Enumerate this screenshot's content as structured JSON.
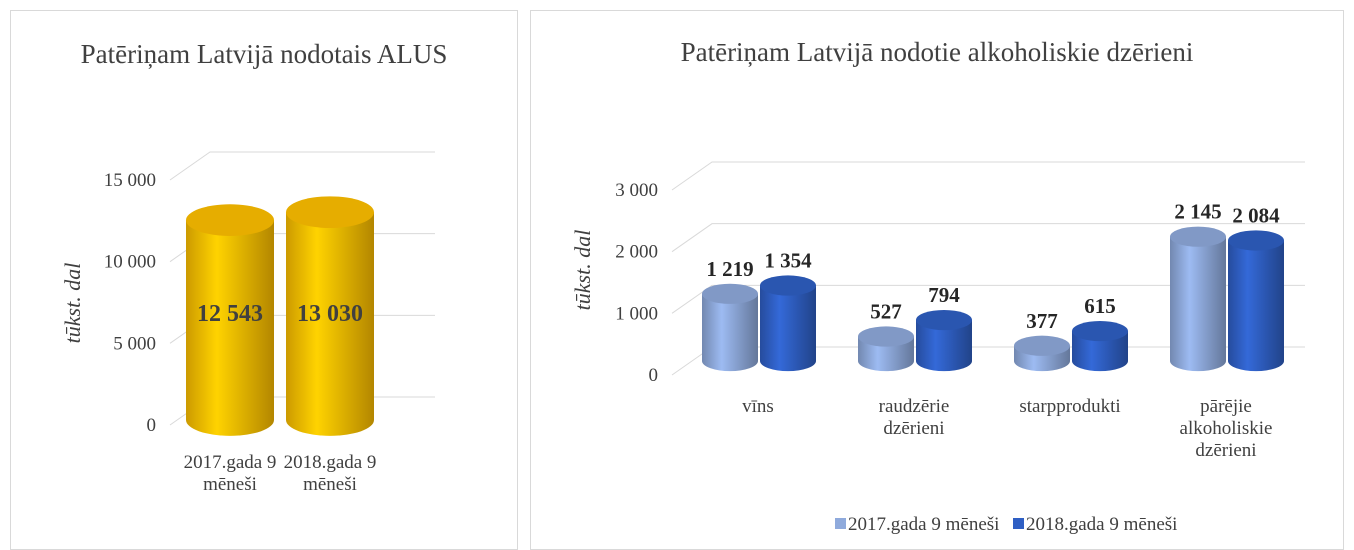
{
  "chart_data": [
    {
      "type": "bar",
      "title": "Patēriņam Latvijā nodotais ALUS",
      "y_label": "tūkst. dal",
      "categories": [
        "2017.gada 9 mēneši",
        "2018.gada 9 mēneši"
      ],
      "values": [
        12543,
        13030
      ],
      "value_labels": [
        "12 543",
        "13 030"
      ],
      "color": "#ffc000",
      "ylim": [
        0,
        15000
      ],
      "yticks": [
        0,
        {
          "value": 5000,
          "label": "5 000"
        },
        {
          "value": 10000,
          "label": "10 000"
        },
        {
          "value": 15000,
          "label": "15 000"
        }
      ],
      "grid": true
    },
    {
      "type": "bar",
      "title": "Patēriņam Latvijā nodotie alkoholiskie dzērieni",
      "y_label": "tūkst. dal",
      "categories": [
        "vīns",
        "raudzērie dzērieni",
        "starpprodukti",
        "pārējie alkoholiskie dzērieni"
      ],
      "series": [
        {
          "name": "2017.gada 9 mēneši",
          "color": "#8faadc",
          "values": [
            1219,
            527,
            377,
            2145
          ],
          "value_labels": [
            "1 219",
            "527",
            "377",
            "2 145"
          ]
        },
        {
          "name": "2018.gada 9 mēneši",
          "color": "#2f5fc4",
          "values": [
            1354,
            794,
            615,
            2084
          ],
          "value_labels": [
            "1 354",
            "794",
            "615",
            "2 084"
          ]
        }
      ],
      "ylim": [
        0,
        3000
      ],
      "yticks": [
        0,
        {
          "value": 1000,
          "label": "1 000"
        },
        {
          "value": 2000,
          "label": "2 000"
        },
        {
          "value": 3000,
          "label": "3 000"
        }
      ],
      "grid": true,
      "legend": "bottom"
    }
  ]
}
